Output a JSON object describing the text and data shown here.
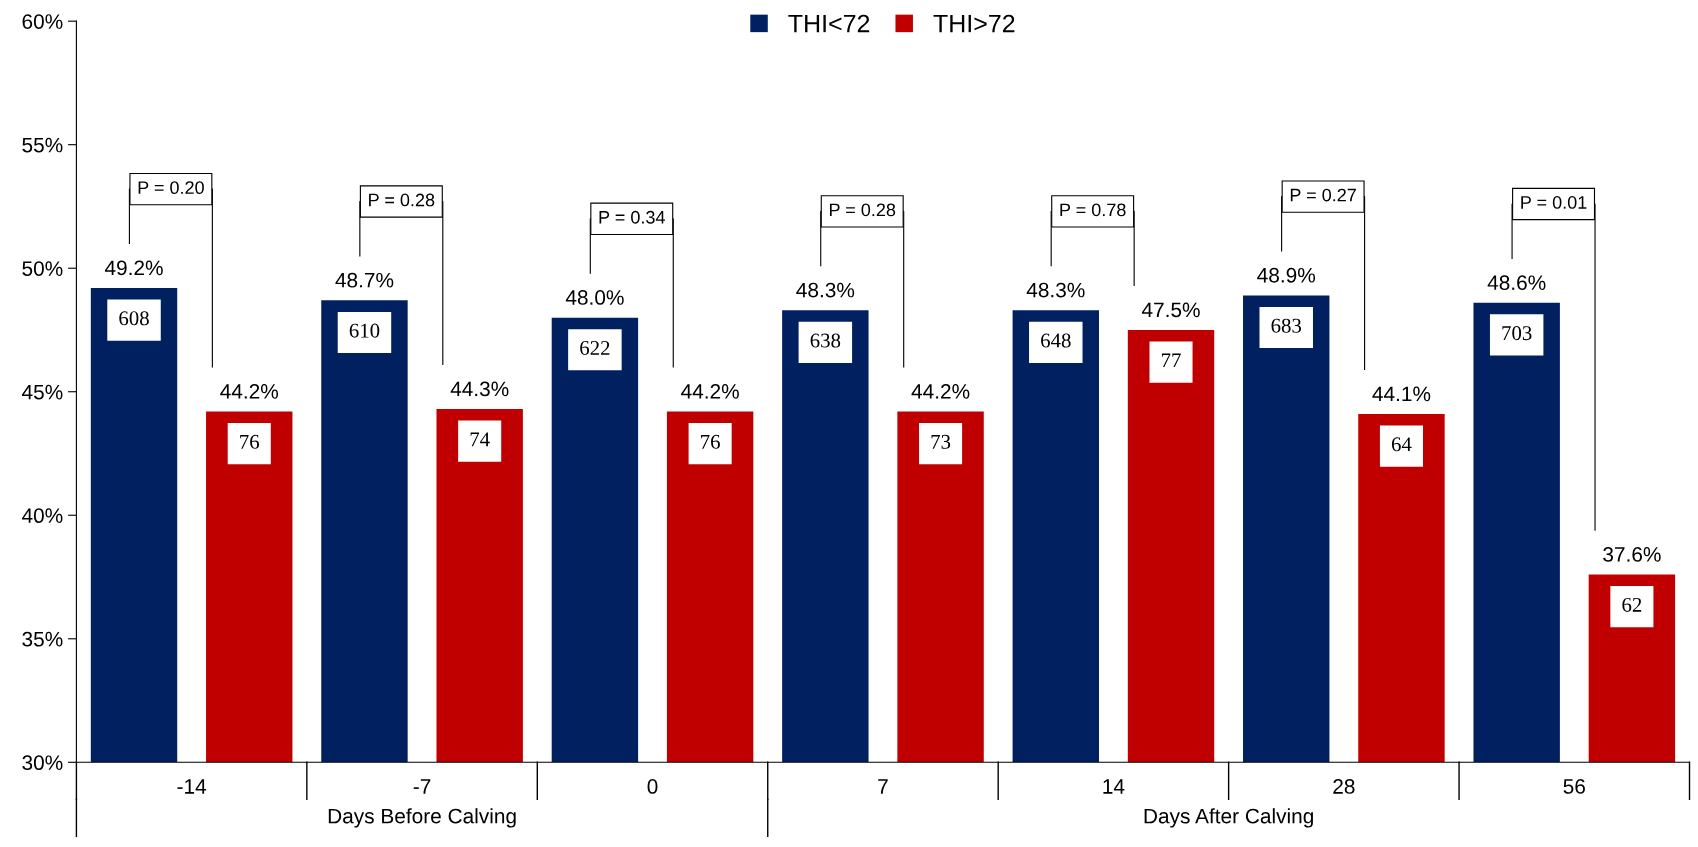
{
  "chart_data": {
    "type": "bar",
    "categories": [
      "-14",
      "-7",
      "0",
      "7",
      "14",
      "28",
      "56"
    ],
    "series": [
      {
        "name": "THI<72",
        "color": "#002060",
        "values": [
          49.2,
          48.7,
          48.0,
          48.3,
          48.3,
          48.9,
          48.6
        ],
        "value_labels": [
          "49.2%",
          "48.7%",
          "48.0%",
          "48.3%",
          "48.3%",
          "48.9%",
          "48.6%"
        ]
      },
      {
        "name": "THI>72",
        "color": "#c00000",
        "values": [
          44.2,
          44.3,
          44.2,
          44.2,
          47.5,
          44.1,
          37.6
        ],
        "value_labels": [
          "44.2%",
          "44.3%",
          "44.2%",
          "44.2%",
          "47.5%",
          "44.1%",
          "37.6%"
        ]
      }
    ],
    "ylim": [
      30,
      60
    ],
    "yticks": [
      {
        "value": 30,
        "label": "30%"
      },
      {
        "value": 35,
        "label": "35%"
      },
      {
        "value": 40,
        "label": "40%"
      },
      {
        "value": 45,
        "label": "45%"
      },
      {
        "value": 50,
        "label": "50%"
      },
      {
        "value": 55,
        "label": "55%"
      },
      {
        "value": 60,
        "label": "60%"
      }
    ],
    "legend": "top",
    "grid": false,
    "annotations": [
      "608",
      "76",
      "610",
      "74",
      "622",
      "76",
      "638",
      "73",
      "648",
      "77",
      "683",
      "64",
      "703",
      "62",
      "P = 0.20",
      "P = 0.28",
      "P = 0.34",
      "P = 0.28",
      "P = 0.78",
      "P = 0.27",
      "P = 0.01",
      "Days Before Calving",
      "Days After Calving"
    ]
  }
}
